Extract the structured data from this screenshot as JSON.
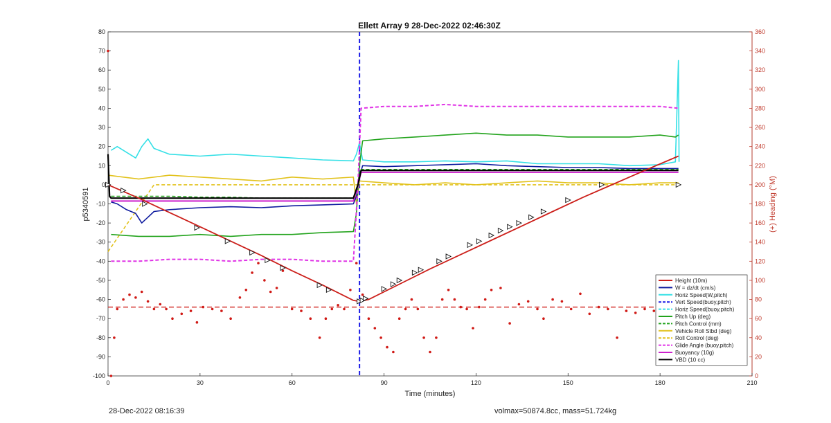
{
  "footer": {
    "timestamp": "28-Dec-2022 08:16:39",
    "mass_info": "volmax=50874.8cc, mass=51.724kg"
  },
  "chart_data": {
    "type": "line",
    "title": "Ellett Array 9 28-Dec-2022 02:46:30Z",
    "xlabel": "Time (minutes)",
    "ylabel": "p5340591",
    "y2label": "(+) Heading (°M)",
    "xlim": [
      0,
      210
    ],
    "ylim": [
      -100,
      80
    ],
    "y2lim": [
      0,
      360
    ],
    "xticks": [
      "0",
      "30",
      "60",
      "90",
      "120",
      "150",
      "180",
      "210"
    ],
    "yticks": [
      "80",
      "70",
      "60",
      "50",
      "40",
      "30",
      "20",
      "10",
      "0",
      "-10",
      "-20",
      "-30",
      "-40",
      "-50",
      "-60",
      "-70",
      "-80",
      "-90",
      "-100"
    ],
    "y2ticks": [
      "360",
      "340",
      "320",
      "300",
      "280",
      "260",
      "240",
      "220",
      "200",
      "180",
      "160",
      "140",
      "120",
      "100",
      "80",
      "60",
      "40",
      "20",
      "0"
    ],
    "legend_position": "bottom-right",
    "vline_x": 82,
    "colors": {
      "right_axis": "#c0392b",
      "height": "#cc1f1a",
      "w": "#0d1a9e",
      "horiz": "#35e0e6",
      "vert": "#1a1ae6",
      "pitch_up": "#22a31c",
      "vehicle_roll": "#e2c21c",
      "glide": "#e033e6",
      "buoyancy": "#cc21cc",
      "vbd": "#000000",
      "heading": "#d01a16"
    },
    "legend": [
      {
        "name": "Height (10m)",
        "color": "#cc1f1a",
        "dash": false
      },
      {
        "name": "W = dz/dt (cm/s)",
        "color": "#0d1a9e",
        "dash": false
      },
      {
        "name": "Horiz Speed(W,pitch)",
        "color": "#35e0e6",
        "dash": false
      },
      {
        "name": "Vert Speed(buoy,pitch)",
        "color": "#1a1ae6",
        "dash": true
      },
      {
        "name": "Horiz Speed(buoy,pitch)",
        "color": "#35e0e6",
        "dash": true
      },
      {
        "name": "Pitch Up (deg)",
        "color": "#22a31c",
        "dash": false
      },
      {
        "name": "Pitch Control (mm)",
        "color": "#22a31c",
        "dash": true
      },
      {
        "name": "Vehicle Roll Stbd (deg)",
        "color": "#e2c21c",
        "dash": false
      },
      {
        "name": "Roll Control (deg)",
        "color": "#e2c21c",
        "dash": true
      },
      {
        "name": "Glide Angle (buoy,pitch)",
        "color": "#e033e6",
        "dash": true
      },
      {
        "name": "Buoyancy (10g)",
        "color": "#cc21cc",
        "dash": false
      },
      {
        "name": "VBD (10 cc)",
        "color": "#000000",
        "dash": false
      }
    ],
    "series": [
      {
        "name": "Height (10m)",
        "x": [
          0,
          10,
          20,
          30,
          40,
          50,
          60,
          70,
          80,
          82,
          85,
          95,
          105,
          115,
          125,
          135,
          145,
          155,
          165,
          175,
          186
        ],
        "y": [
          0,
          -7,
          -14.5,
          -22,
          -29.5,
          -37,
          -45,
          -52.5,
          -60.5,
          -61,
          -60,
          -52,
          -44,
          -36.5,
          -29,
          -21.5,
          -14,
          -6.5,
          0.5,
          7.5,
          15
        ]
      },
      {
        "name": "Triangle markers",
        "x": [
          0,
          5,
          12,
          29,
          39,
          47,
          52,
          57,
          69,
          72,
          82,
          83,
          84,
          90,
          93,
          95,
          100,
          102,
          108,
          111,
          118,
          121,
          125,
          128,
          131,
          134,
          138,
          142,
          150,
          161,
          186
        ],
        "y": [
          0,
          -3,
          -10,
          -22.5,
          -29.5,
          -35.5,
          -39.5,
          -43.5,
          -52.5,
          -55,
          -61,
          -60.5,
          -59.5,
          -54.5,
          -52,
          -50,
          -46,
          -44.5,
          -40,
          -37.5,
          -31.5,
          -29.5,
          -26.5,
          -24,
          -22,
          -20,
          -17,
          -14,
          -8,
          0,
          0
        ]
      },
      {
        "name": "W = dz/dt (cm/s)",
        "x": [
          1,
          3,
          6,
          9,
          11,
          13,
          15,
          20,
          30,
          40,
          50,
          60,
          70,
          80,
          81,
          82,
          83,
          90,
          100,
          110,
          120,
          130,
          140,
          150,
          160,
          170,
          180,
          186
        ],
        "y": [
          -9,
          -10,
          -13,
          -15,
          -20,
          -17,
          -14,
          -13,
          -12,
          -11.5,
          -12,
          -11,
          -10.5,
          -10,
          -6,
          4,
          10,
          9.5,
          10,
          10.5,
          11,
          10,
          9.5,
          9,
          9,
          8.5,
          8.5,
          8.5
        ]
      },
      {
        "name": "Horiz Speed(W,pitch)",
        "x": [
          1,
          3,
          6,
          9,
          11,
          13,
          15,
          20,
          30,
          40,
          50,
          60,
          70,
          80,
          81,
          82,
          83,
          90,
          100,
          110,
          120,
          130,
          140,
          150,
          160,
          170,
          180,
          185,
          186,
          186.2
        ],
        "y": [
          18,
          20,
          17,
          14,
          20,
          24,
          19,
          16,
          15,
          16,
          15,
          14,
          13,
          12.5,
          16,
          22,
          13,
          12,
          12,
          12.5,
          12,
          12.5,
          11,
          11,
          11,
          10,
          10.5,
          12,
          65,
          12
        ]
      },
      {
        "name": "Pitch Up (deg)",
        "x": [
          1,
          10,
          20,
          30,
          40,
          50,
          60,
          70,
          80,
          81,
          82,
          83,
          90,
          100,
          110,
          120,
          130,
          140,
          150,
          160,
          170,
          180,
          185,
          186
        ],
        "y": [
          -26,
          -27,
          -27,
          -26,
          -27,
          -26,
          -26,
          -25,
          -24.5,
          -15,
          10,
          23,
          24,
          25,
          26,
          27,
          26,
          26,
          25,
          25,
          25,
          26,
          25,
          26
        ]
      },
      {
        "name": "Pitch Control (mm)",
        "x": [
          1,
          10,
          20,
          30,
          40,
          50,
          60,
          70,
          80,
          81.5,
          82.5,
          100,
          120,
          140,
          160,
          186
        ],
        "y": [
          -6,
          -6,
          -6,
          -6.5,
          -6.5,
          -7,
          -7,
          -7,
          -7,
          0,
          8,
          8,
          8,
          8,
          8,
          8
        ]
      },
      {
        "name": "Vehicle Roll Stbd (deg)",
        "x": [
          0,
          10,
          20,
          30,
          40,
          50,
          60,
          70,
          80,
          81,
          82,
          90,
          100,
          110,
          120,
          130,
          140,
          150,
          160,
          170,
          180,
          186
        ],
        "y": [
          5,
          3,
          5,
          4,
          3,
          2,
          4,
          3,
          4,
          -10,
          2,
          1,
          0,
          1,
          0,
          1,
          2,
          1,
          1,
          0,
          1,
          1
        ]
      },
      {
        "name": "Roll Control (deg)",
        "x": [
          0,
          15,
          25,
          35,
          45,
          55,
          65,
          75,
          81,
          83,
          95,
          105,
          120,
          140,
          160,
          186
        ],
        "y": [
          -35,
          0,
          0,
          0,
          0,
          0,
          0,
          0,
          0,
          0,
          0,
          0,
          0,
          0,
          0,
          0
        ]
      },
      {
        "name": "Glide Angle (buoy,pitch)",
        "x": [
          1,
          10,
          20,
          30,
          40,
          50,
          60,
          70,
          80,
          81.5,
          82.5,
          90,
          100,
          110,
          120,
          130,
          140,
          150,
          160,
          170,
          180,
          186
        ],
        "y": [
          -40,
          -40,
          -39,
          -39,
          -40,
          -39,
          -39,
          -40,
          -40,
          0,
          40,
          41,
          41,
          42,
          41,
          41,
          41,
          41,
          41,
          41,
          41,
          40
        ]
      },
      {
        "name": "Buoyancy (10g)",
        "x": [
          1,
          30,
          60,
          80,
          81.5,
          82.5,
          120,
          160,
          186
        ],
        "y": [
          -8.5,
          -8.5,
          -8.5,
          -8.5,
          0,
          6.5,
          6.5,
          6.5,
          6.5
        ]
      },
      {
        "name": "VBD (10 cc)",
        "x": [
          0,
          0.5,
          1,
          30,
          60,
          80,
          81.5,
          82.5,
          120,
          160,
          186
        ],
        "y": [
          16,
          -6,
          -7,
          -7,
          -7,
          -7,
          0,
          7.5,
          7.5,
          7.5,
          7.5
        ]
      },
      {
        "name": "Heading mean",
        "x": [
          0,
          186
        ],
        "y2": [
          72,
          72
        ]
      },
      {
        "name": "Heading (scatter)",
        "x": [
          0,
          1,
          2,
          3,
          5,
          7,
          9,
          11,
          13,
          15,
          17,
          19,
          21,
          24,
          27,
          29,
          31,
          34,
          37,
          40,
          43,
          45,
          47,
          49,
          51,
          53,
          55,
          57,
          60,
          63,
          66,
          69,
          71,
          73,
          75,
          77,
          79,
          81,
          83,
          85,
          87,
          89,
          91,
          93,
          95,
          97,
          99,
          101,
          103,
          105,
          107,
          109,
          111,
          113,
          115,
          117,
          119,
          121,
          123,
          125,
          128,
          131,
          134,
          137,
          140,
          142,
          145,
          148,
          151,
          154,
          157,
          160,
          163,
          166,
          169,
          172,
          175,
          178,
          181,
          184,
          186
        ],
        "y2": [
          340,
          0,
          40,
          70,
          80,
          85,
          82,
          88,
          78,
          70,
          75,
          70,
          60,
          65,
          68,
          56,
          72,
          70,
          68,
          60,
          82,
          90,
          108,
          118,
          100,
          88,
          92,
          110,
          70,
          68,
          60,
          40,
          60,
          70,
          74,
          70,
          90,
          118,
          85,
          60,
          50,
          40,
          30,
          25,
          60,
          70,
          80,
          70,
          40,
          25,
          40,
          80,
          90,
          80,
          72,
          70,
          50,
          72,
          80,
          90,
          92,
          55,
          75,
          78,
          70,
          60,
          80,
          78,
          70,
          86,
          65,
          72,
          70,
          40,
          68,
          66,
          70,
          68,
          65,
          70,
          72
        ]
      }
    ]
  }
}
